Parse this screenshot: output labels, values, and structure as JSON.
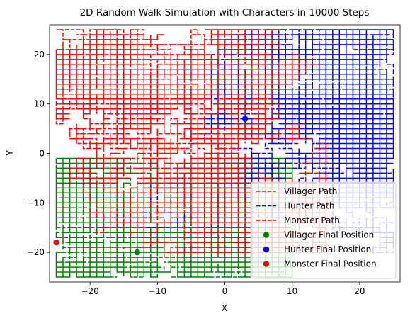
{
  "chart_data": {
    "type": "line",
    "title": "2D Random Walk Simulation with Characters in 10000 Steps",
    "xlabel": "X",
    "ylabel": "Y",
    "xlim": [
      -26,
      26
    ],
    "ylim": [
      -26,
      26
    ],
    "xticks": [
      -20,
      -10,
      0,
      10,
      20
    ],
    "yticks": [
      -20,
      -10,
      0,
      10,
      20
    ],
    "xtick_labels": [
      "−20",
      "−10",
      "0",
      "10",
      "20"
    ],
    "ytick_labels": [
      "−20",
      "−10",
      "0",
      "10",
      "20"
    ],
    "grid": false,
    "legend_position": "lower-right",
    "line_style": "dashed",
    "series": [
      {
        "name": "Villager Path",
        "color": "#008000",
        "region": {
          "x": [
            -25,
            10
          ],
          "y": [
            -25,
            -1
          ]
        },
        "start": [
          -20,
          -7
        ],
        "final": [
          -13,
          -20
        ]
      },
      {
        "name": "Hunter Path",
        "color": "#0000ff",
        "region": {
          "x": [
            -25,
            25
          ],
          "y": [
            -25,
            25
          ]
        },
        "start": [
          20,
          5
        ],
        "final": [
          3,
          7
        ]
      },
      {
        "name": "Monster Path",
        "color": "#ff0000",
        "region": {
          "x": [
            -25,
            15
          ],
          "y": [
            -20,
            25
          ]
        },
        "start": [
          -20,
          20
        ],
        "final": [
          -25,
          -18
        ]
      }
    ],
    "final_positions": [
      {
        "name": "Villager Final Position",
        "color": "#008000",
        "x": -13,
        "y": -20
      },
      {
        "name": "Hunter Final Position",
        "color": "#0000ff",
        "x": 3,
        "y": 7
      },
      {
        "name": "Monster Final Position",
        "color": "#ff0000",
        "x": -25,
        "y": -18
      }
    ]
  }
}
